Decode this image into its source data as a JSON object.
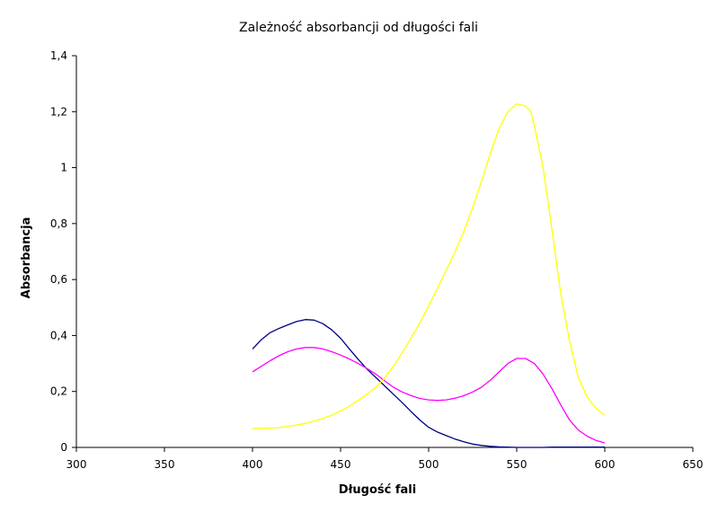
{
  "chart_data": {
    "type": "line",
    "title": "Zależność absorbancji od długości fali",
    "xlabel": "Długość fali",
    "ylabel": "Absorbancja",
    "xlim": [
      300,
      650
    ],
    "ylim": [
      0,
      1.4
    ],
    "x_ticks": [
      300,
      350,
      400,
      450,
      500,
      550,
      600,
      650
    ],
    "x_tick_labels": [
      "300",
      "350",
      "400",
      "450",
      "500",
      "550",
      "600",
      "650"
    ],
    "y_ticks": [
      0,
      0.2,
      0.4,
      0.6,
      0.8,
      1.0,
      1.2,
      1.4
    ],
    "y_tick_labels": [
      "0",
      "0,2",
      "0,4",
      "0,6",
      "0,8",
      "1",
      "1,2",
      "1,4"
    ],
    "grid": false,
    "legend": "none",
    "series": [
      {
        "color": "#000080",
        "x": [
          400,
          405,
          410,
          415,
          420,
          425,
          430,
          435,
          440,
          445,
          450,
          455,
          460,
          465,
          470,
          475,
          480,
          485,
          490,
          495,
          500,
          505,
          510,
          515,
          520,
          525,
          530,
          535,
          540,
          545,
          550,
          555,
          560,
          565,
          570,
          575,
          580,
          585,
          590,
          595,
          600
        ],
        "y": [
          0.352,
          0.385,
          0.41,
          0.425,
          0.438,
          0.45,
          0.457,
          0.455,
          0.442,
          0.42,
          0.39,
          0.352,
          0.315,
          0.28,
          0.25,
          0.22,
          0.19,
          0.16,
          0.128,
          0.098,
          0.072,
          0.055,
          0.042,
          0.03,
          0.02,
          0.012,
          0.007,
          0.004,
          0.002,
          0.001,
          0.0,
          0.0,
          0.0,
          0.0,
          0.001,
          0.001,
          0.001,
          0.001,
          0.001,
          0.001,
          0.001
        ]
      },
      {
        "color": "#ff00ff",
        "x": [
          400,
          405,
          410,
          415,
          420,
          425,
          430,
          435,
          440,
          445,
          450,
          455,
          460,
          465,
          470,
          475,
          480,
          485,
          490,
          495,
          500,
          505,
          510,
          515,
          520,
          525,
          530,
          535,
          540,
          545,
          550,
          555,
          560,
          565,
          570,
          575,
          580,
          585,
          590,
          595,
          600
        ],
        "y": [
          0.27,
          0.29,
          0.31,
          0.328,
          0.342,
          0.352,
          0.357,
          0.357,
          0.352,
          0.342,
          0.33,
          0.316,
          0.3,
          0.282,
          0.262,
          0.238,
          0.215,
          0.198,
          0.185,
          0.175,
          0.17,
          0.168,
          0.17,
          0.176,
          0.185,
          0.198,
          0.215,
          0.24,
          0.27,
          0.3,
          0.318,
          0.318,
          0.3,
          0.262,
          0.21,
          0.152,
          0.098,
          0.062,
          0.04,
          0.025,
          0.016
        ]
      },
      {
        "color": "#ffff00",
        "x": [
          400,
          405,
          410,
          415,
          420,
          425,
          430,
          435,
          440,
          445,
          450,
          455,
          460,
          465,
          470,
          475,
          480,
          485,
          490,
          495,
          500,
          505,
          510,
          515,
          520,
          525,
          530,
          535,
          540,
          545,
          550,
          555,
          558,
          560,
          565,
          570,
          575,
          580,
          585,
          590,
          595,
          600
        ],
        "y": [
          0.068,
          0.068,
          0.069,
          0.071,
          0.075,
          0.08,
          0.086,
          0.094,
          0.104,
          0.115,
          0.13,
          0.148,
          0.168,
          0.19,
          0.215,
          0.248,
          0.29,
          0.338,
          0.39,
          0.445,
          0.505,
          0.568,
          0.633,
          0.7,
          0.772,
          0.858,
          0.95,
          1.05,
          1.14,
          1.2,
          1.228,
          1.22,
          1.2,
          1.15,
          1.0,
          0.78,
          0.55,
          0.38,
          0.25,
          0.18,
          0.14,
          0.115
        ]
      }
    ]
  }
}
